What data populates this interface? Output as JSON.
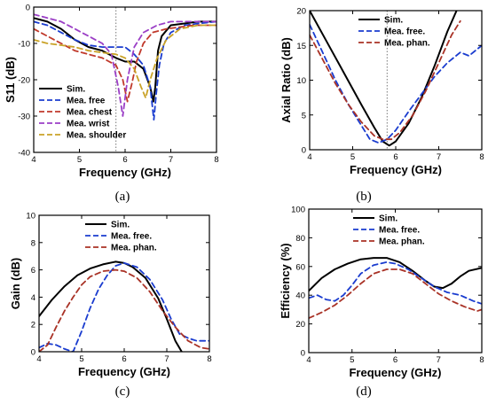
{
  "figure": {
    "panel_labels": [
      "(a)",
      "(b)",
      "(c)",
      "(d)"
    ]
  },
  "chart_data": [
    {
      "type": "line",
      "panel": "(a)",
      "xlabel": "Frequency (GHz)",
      "ylabel": "S11 (dB)",
      "xlim": [
        4,
        8
      ],
      "ylim": [
        -40,
        0
      ],
      "xticks": [
        4,
        5,
        6,
        7,
        8
      ],
      "yticks": [
        -40,
        -30,
        -20,
        -10,
        0
      ],
      "grid": false,
      "legend_position": "bottom-left",
      "vline_x": 5.8,
      "series": [
        {
          "name": "Sim.",
          "color": "#000000",
          "dash": "solid",
          "x": [
            4.0,
            4.3,
            4.6,
            4.9,
            5.2,
            5.5,
            5.8,
            6.0,
            6.2,
            6.4,
            6.55,
            6.62,
            6.66,
            6.72,
            6.8,
            7.0,
            7.3,
            7.6,
            8.0
          ],
          "y": [
            -3,
            -4,
            -6,
            -9,
            -11,
            -12,
            -14,
            -15,
            -15,
            -17,
            -22,
            -26,
            -22,
            -12,
            -8,
            -5,
            -4.5,
            -4,
            -4
          ]
        },
        {
          "name": "Mea. free",
          "color": "#1a3ccf",
          "dash": "dashed",
          "x": [
            4.0,
            4.3,
            4.6,
            4.9,
            5.2,
            5.5,
            5.8,
            6.0,
            6.2,
            6.4,
            6.55,
            6.63,
            6.68,
            6.75,
            6.85,
            7.0,
            7.3,
            7.6,
            8.0
          ],
          "y": [
            -4,
            -5,
            -7,
            -9,
            -10.5,
            -11,
            -11,
            -11,
            -13,
            -16,
            -22,
            -31,
            -24,
            -16,
            -10,
            -7,
            -5,
            -4.5,
            -4
          ]
        },
        {
          "name": "Mea. chest",
          "color": "#c0392b",
          "dash": "dashed",
          "x": [
            4.0,
            4.3,
            4.6,
            4.9,
            5.2,
            5.5,
            5.8,
            5.95,
            6.05,
            6.15,
            6.25,
            6.4,
            6.6,
            6.9,
            7.2,
            7.5,
            8.0
          ],
          "y": [
            -6,
            -8,
            -10,
            -12,
            -13,
            -14,
            -16,
            -20,
            -26,
            -21,
            -15,
            -10,
            -7,
            -6,
            -5.5,
            -5,
            -5
          ]
        },
        {
          "name": "Mea. wrist",
          "color": "#9b3fc6",
          "dash": "dashed",
          "x": [
            4.0,
            4.3,
            4.6,
            4.9,
            5.2,
            5.5,
            5.7,
            5.85,
            5.95,
            6.05,
            6.2,
            6.4,
            6.7,
            7.0,
            7.4,
            8.0
          ],
          "y": [
            -2,
            -3,
            -4,
            -6,
            -8,
            -10,
            -13,
            -22,
            -30,
            -20,
            -11,
            -7,
            -5,
            -4,
            -4,
            -4
          ]
        },
        {
          "name": "Mea. shoulder",
          "color": "#c9a227",
          "dash": "dashed",
          "x": [
            4.0,
            4.3,
            4.6,
            4.9,
            5.2,
            5.5,
            5.8,
            6.0,
            6.2,
            6.35,
            6.45,
            6.55,
            6.7,
            6.9,
            7.2,
            7.6,
            8.0
          ],
          "y": [
            -9,
            -10,
            -10.5,
            -11,
            -12,
            -12.5,
            -13,
            -14,
            -17,
            -22,
            -25,
            -20,
            -14,
            -9,
            -6,
            -5,
            -5
          ]
        }
      ]
    },
    {
      "type": "line",
      "panel": "(b)",
      "xlabel": "Frequency (GHz)",
      "ylabel": "Axial Ratio (dB)",
      "xlim": [
        4,
        8
      ],
      "ylim": [
        0,
        20
      ],
      "xticks": [
        4,
        5,
        6,
        7,
        8
      ],
      "yticks": [
        0,
        5,
        10,
        15,
        20
      ],
      "grid": false,
      "legend_position": "top-right",
      "vline_x": 5.8,
      "series": [
        {
          "name": "Sim.",
          "color": "#000000",
          "dash": "solid",
          "x": [
            4.0,
            4.4,
            4.8,
            5.2,
            5.5,
            5.7,
            5.85,
            6.0,
            6.3,
            6.6,
            6.9,
            7.2,
            7.45
          ],
          "y": [
            20,
            15.5,
            11,
            6.5,
            3.2,
            1.2,
            0.6,
            1.2,
            3.8,
            7.5,
            12,
            17,
            20.5
          ]
        },
        {
          "name": "Mea. free.",
          "color": "#1a3ccf",
          "dash": "dashed",
          "x": [
            4.0,
            4.3,
            4.6,
            4.9,
            5.2,
            5.4,
            5.6,
            5.8,
            6.0,
            6.3,
            6.6,
            6.9,
            7.2,
            7.5,
            7.7,
            8.0
          ],
          "y": [
            18,
            14,
            10,
            6.5,
            3.5,
            1.5,
            1.0,
            1.5,
            2.8,
            5.5,
            8,
            10.5,
            12.5,
            14,
            13.5,
            15
          ]
        },
        {
          "name": "Mea. phan.",
          "color": "#a93226",
          "dash": "dashed",
          "x": [
            4.0,
            4.3,
            4.6,
            4.9,
            5.2,
            5.5,
            5.7,
            5.9,
            6.1,
            6.4,
            6.7,
            7.0,
            7.3,
            7.5
          ],
          "y": [
            16.5,
            13,
            9.5,
            6.5,
            4,
            2,
            1.5,
            1.5,
            2.5,
            5,
            8.5,
            12.5,
            16.5,
            18.5
          ]
        }
      ]
    },
    {
      "type": "line",
      "panel": "(c)",
      "xlabel": "Frequency (GHz)",
      "ylabel": "Gain (dB)",
      "xlim": [
        4,
        8
      ],
      "ylim": [
        0,
        10
      ],
      "xticks": [
        4,
        5,
        6,
        7,
        8
      ],
      "yticks": [
        0,
        2,
        4,
        6,
        8,
        10
      ],
      "grid": false,
      "legend_position": "top-right",
      "vline_x": null,
      "series": [
        {
          "name": "Sim.",
          "color": "#000000",
          "dash": "solid",
          "x": [
            4.0,
            4.3,
            4.6,
            4.9,
            5.2,
            5.5,
            5.8,
            6.0,
            6.2,
            6.5,
            6.8,
            7.0,
            7.2,
            7.35
          ],
          "y": [
            2.6,
            3.8,
            4.8,
            5.6,
            6.1,
            6.4,
            6.6,
            6.5,
            6.2,
            5.4,
            3.9,
            2.4,
            0.8,
            0
          ]
        },
        {
          "name": "Mea. free.",
          "color": "#1a3ccf",
          "dash": "dashed",
          "x": [
            4.0,
            4.2,
            4.4,
            4.6,
            4.8,
            5.0,
            5.2,
            5.4,
            5.6,
            5.8,
            6.0,
            6.3,
            6.6,
            6.9,
            7.1,
            7.3,
            7.5,
            7.7,
            8.0
          ],
          "y": [
            0.3,
            0.6,
            0.5,
            0.2,
            0,
            1.5,
            3.2,
            4.6,
            5.6,
            6.3,
            6.5,
            6.2,
            5.3,
            3.8,
            2.4,
            1.3,
            1.0,
            0.8,
            0.8
          ]
        },
        {
          "name": "Mea. phan.",
          "color": "#a93226",
          "dash": "dashed",
          "x": [
            4.0,
            4.2,
            4.4,
            4.6,
            4.8,
            5.0,
            5.2,
            5.5,
            5.8,
            6.0,
            6.3,
            6.6,
            6.9,
            7.2,
            7.5,
            7.8,
            8.0
          ],
          "y": [
            0,
            0.5,
            1.8,
            3.0,
            4.0,
            4.9,
            5.5,
            5.9,
            6.0,
            5.9,
            5.4,
            4.4,
            3.0,
            1.8,
            0.8,
            0.3,
            0.2
          ]
        }
      ]
    },
    {
      "type": "line",
      "panel": "(d)",
      "xlabel": "Frequency (GHz)",
      "ylabel": "Efficiency (%)",
      "xlim": [
        4,
        8
      ],
      "ylim": [
        0,
        100
      ],
      "xticks": [
        4,
        5,
        6,
        7,
        8
      ],
      "yticks": [
        0,
        20,
        40,
        60,
        80,
        100
      ],
      "grid": false,
      "legend_position": "top-right",
      "vline_x": null,
      "series": [
        {
          "name": "Sim.",
          "color": "#000000",
          "dash": "solid",
          "x": [
            4.0,
            4.3,
            4.6,
            4.9,
            5.2,
            5.5,
            5.8,
            6.1,
            6.4,
            6.7,
            6.9,
            7.1,
            7.3,
            7.5,
            7.7,
            8.0
          ],
          "y": [
            43,
            52,
            58,
            62,
            65,
            66,
            66,
            63,
            57,
            50,
            46,
            45,
            48,
            53,
            57,
            59
          ]
        },
        {
          "name": "Mea. free.",
          "color": "#1a3ccf",
          "dash": "dashed",
          "x": [
            4.0,
            4.2,
            4.4,
            4.6,
            4.8,
            5.0,
            5.2,
            5.5,
            5.8,
            6.0,
            6.3,
            6.6,
            6.9,
            7.2,
            7.5,
            7.8,
            8.0
          ],
          "y": [
            38,
            40,
            37,
            36,
            40,
            47,
            55,
            61,
            63,
            62,
            58,
            52,
            46,
            42,
            40,
            36,
            34
          ]
        },
        {
          "name": "Mea. phan.",
          "color": "#a93226",
          "dash": "dashed",
          "x": [
            4.0,
            4.3,
            4.6,
            4.9,
            5.2,
            5.5,
            5.8,
            6.1,
            6.4,
            6.7,
            7.0,
            7.3,
            7.6,
            7.9,
            8.0
          ],
          "y": [
            24,
            28,
            33,
            40,
            48,
            55,
            58,
            58,
            55,
            48,
            41,
            36,
            32,
            29,
            30
          ]
        }
      ]
    }
  ]
}
